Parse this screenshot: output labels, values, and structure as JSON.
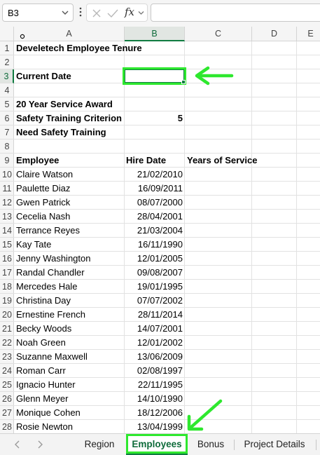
{
  "formula_bar": {
    "name_box": "B3",
    "fx_label": "fx",
    "formula": ""
  },
  "columns": [
    "A",
    "B",
    "C",
    "D",
    "E"
  ],
  "active_column": "B",
  "active_row": 3,
  "rows": [
    {
      "n": 1,
      "a": "Develetech Employee Tenure",
      "b": "",
      "c": "",
      "bold": true
    },
    {
      "n": 2,
      "a": "",
      "b": "",
      "c": ""
    },
    {
      "n": 3,
      "a": "Current Date",
      "b": "",
      "c": "",
      "bold": true
    },
    {
      "n": 4,
      "a": "",
      "b": "",
      "c": ""
    },
    {
      "n": 5,
      "a": "20 Year Service Award",
      "b": "",
      "c": "",
      "bold": true
    },
    {
      "n": 6,
      "a": "Safety Training Criterion",
      "b": "5",
      "c": "",
      "bold": true
    },
    {
      "n": 7,
      "a": "Need Safety Training",
      "b": "",
      "c": "",
      "bold": true
    },
    {
      "n": 8,
      "a": "",
      "b": "",
      "c": ""
    },
    {
      "n": 9,
      "a": "Employee",
      "b": "Hire Date",
      "c": "Years of Service",
      "bold": true,
      "header": true
    },
    {
      "n": 10,
      "a": "Claire Watson",
      "b": "21/02/2010",
      "c": ""
    },
    {
      "n": 11,
      "a": "Paulette Diaz",
      "b": "16/09/2011",
      "c": ""
    },
    {
      "n": 12,
      "a": "Gwen Patrick",
      "b": "08/07/2000",
      "c": ""
    },
    {
      "n": 13,
      "a": "Cecelia Nash",
      "b": "28/04/2001",
      "c": ""
    },
    {
      "n": 14,
      "a": "Terrance Reyes",
      "b": "21/03/2004",
      "c": ""
    },
    {
      "n": 15,
      "a": "Kay Tate",
      "b": "16/11/1990",
      "c": ""
    },
    {
      "n": 16,
      "a": "Jenny Washington",
      "b": "12/01/2005",
      "c": ""
    },
    {
      "n": 17,
      "a": "Randal Chandler",
      "b": "09/08/2007",
      "c": ""
    },
    {
      "n": 18,
      "a": "Mercedes Hale",
      "b": "19/01/1995",
      "c": ""
    },
    {
      "n": 19,
      "a": "Christina Day",
      "b": "07/07/2002",
      "c": ""
    },
    {
      "n": 20,
      "a": "Ernestine French",
      "b": "28/11/2014",
      "c": ""
    },
    {
      "n": 21,
      "a": "Becky Woods",
      "b": "14/07/2001",
      "c": ""
    },
    {
      "n": 22,
      "a": "Noah Green",
      "b": "12/01/2002",
      "c": ""
    },
    {
      "n": 23,
      "a": "Suzanne Maxwell",
      "b": "13/06/2009",
      "c": ""
    },
    {
      "n": 24,
      "a": "Roman Carr",
      "b": "02/08/1997",
      "c": ""
    },
    {
      "n": 25,
      "a": "Ignacio Hunter",
      "b": "22/11/1995",
      "c": ""
    },
    {
      "n": 26,
      "a": "Glenn Meyer",
      "b": "14/10/1990",
      "c": ""
    },
    {
      "n": 27,
      "a": "Monique Cohen",
      "b": "18/12/2006",
      "c": ""
    },
    {
      "n": 28,
      "a": "Rosie Newton",
      "b": "13/04/1999",
      "c": ""
    }
  ],
  "sheet_tabs": [
    {
      "label": "Region",
      "active": false
    },
    {
      "label": "Employees",
      "active": true
    },
    {
      "label": "Bonus",
      "active": false
    },
    {
      "label": "Project Details",
      "active": false
    }
  ],
  "annotation_color": "#2ee82e",
  "accent_color": "#107c41"
}
